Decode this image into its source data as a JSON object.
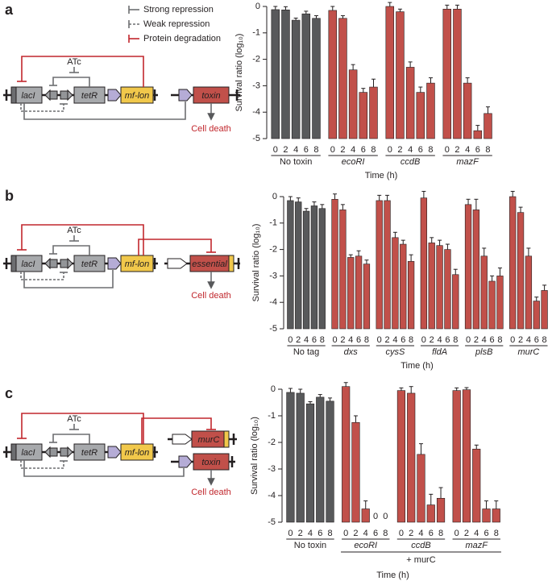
{
  "diagrams": [
    {
      "label": "a",
      "legend": [
        "Strong repression",
        "Weak repression",
        "Protein degradation"
      ],
      "inducer": "ATc",
      "genes": [
        "lacI",
        "tetR",
        "mf-lon",
        "toxin"
      ],
      "outcome": "Cell death"
    },
    {
      "label": "b",
      "inducer": "ATc",
      "genes": [
        "lacI",
        "tetR",
        "mf-lon",
        "essential"
      ],
      "outcome": "Cell death"
    },
    {
      "label": "c",
      "inducer": "ATc",
      "genes": [
        "lacI",
        "tetR",
        "mf-lon",
        "murC",
        "toxin"
      ],
      "outcome": "Cell death"
    }
  ],
  "chart_data": [
    {
      "type": "bar",
      "ylabel": "Survival ratio (log₁₀)",
      "xlabel": "Time (h)",
      "ylim": [
        -5,
        0
      ],
      "yticks": [
        0,
        -1,
        -2,
        -3,
        -4,
        -5
      ],
      "categories": [
        "0",
        "2",
        "4",
        "6",
        "8"
      ],
      "groups": [
        {
          "name": "No toxin",
          "color": "#58595b",
          "values": [
            -0.12,
            -0.13,
            -0.52,
            -0.28,
            -0.45
          ],
          "errors": [
            0.12,
            0.12,
            0.08,
            0.1,
            0.1
          ]
        },
        {
          "name": "ecoRI",
          "color": "#c1504a",
          "values": [
            -0.15,
            -0.45,
            -2.4,
            -3.25,
            -3.05
          ],
          "errors": [
            0.15,
            0.1,
            0.2,
            0.15,
            0.3
          ]
        },
        {
          "name": "ccdB",
          "color": "#c1504a",
          "values": [
            0,
            -0.2,
            -2.3,
            -3.25,
            -2.9
          ],
          "errors": [
            0.15,
            0.1,
            0.2,
            0.2,
            0.2
          ]
        },
        {
          "name": "mazF",
          "color": "#c1504a",
          "values": [
            -0.1,
            -0.1,
            -2.9,
            -4.7,
            -4.05
          ],
          "errors": [
            0.15,
            0.15,
            0.2,
            0.2,
            0.25
          ]
        }
      ]
    },
    {
      "type": "bar",
      "ylabel": "Survival ratio (log₁₀)",
      "xlabel": "Time (h)",
      "ylim": [
        -5,
        0
      ],
      "yticks": [
        0,
        -1,
        -2,
        -3,
        -4,
        -5
      ],
      "categories": [
        "0",
        "2",
        "4",
        "6",
        "8"
      ],
      "groups": [
        {
          "name": "No tag",
          "color": "#58595b",
          "values": [
            -0.15,
            -0.2,
            -0.55,
            -0.35,
            -0.45
          ],
          "errors": [
            0.15,
            0.15,
            0.1,
            0.15,
            0.15
          ]
        },
        {
          "name": "dxs",
          "color": "#c1504a",
          "values": [
            -0.1,
            -0.5,
            -2.3,
            -2.25,
            -2.55
          ],
          "errors": [
            0.2,
            0.2,
            0.1,
            0.2,
            0.15
          ]
        },
        {
          "name": "cysS",
          "color": "#c1504a",
          "values": [
            -0.15,
            -0.15,
            -1.55,
            -1.8,
            -2.45
          ],
          "errors": [
            0.2,
            0.2,
            0.2,
            0.15,
            0.25
          ]
        },
        {
          "name": "fldA",
          "color": "#c1504a",
          "values": [
            -0.05,
            -1.75,
            -1.85,
            -2.0,
            -2.95
          ],
          "errors": [
            0.25,
            0.2,
            0.2,
            0.2,
            0.2
          ]
        },
        {
          "name": "plsB",
          "color": "#c1504a",
          "values": [
            -0.3,
            -0.5,
            -2.25,
            -3.2,
            -3.0
          ],
          "errors": [
            0.2,
            0.4,
            0.3,
            0.2,
            0.3
          ]
        },
        {
          "name": "murC",
          "color": "#c1504a",
          "values": [
            0,
            -0.6,
            -2.25,
            -3.95,
            -3.55
          ],
          "errors": [
            0.2,
            0.2,
            0.3,
            0.15,
            0.2
          ]
        }
      ]
    },
    {
      "type": "bar",
      "ylabel": "Survival ratio (log₁₀)",
      "xlabel": "Time (h)",
      "note": "+ murC",
      "ylim": [
        -5,
        0
      ],
      "yticks": [
        0,
        -1,
        -2,
        -3,
        -4,
        -5
      ],
      "categories": [
        "0",
        "2",
        "4",
        "6",
        "8"
      ],
      "groups": [
        {
          "name": "No toxin",
          "color": "#58595b",
          "values": [
            -0.12,
            -0.15,
            -0.55,
            -0.3,
            -0.45
          ],
          "errors": [
            0.15,
            0.15,
            0.08,
            0.1,
            0.12
          ]
        },
        {
          "name": "ecoRI",
          "color": "#c1504a",
          "values": [
            0.1,
            -1.25,
            -4.5,
            null,
            null
          ],
          "errors": [
            0.15,
            0.25,
            0.3,
            null,
            null
          ],
          "value_labels": [
            null,
            null,
            null,
            "0",
            "0"
          ]
        },
        {
          "name": "ccdB",
          "color": "#c1504a",
          "values": [
            -0.05,
            -0.15,
            -2.45,
            -4.35,
            -4.1
          ],
          "errors": [
            0.1,
            0.25,
            0.4,
            0.4,
            0.4
          ]
        },
        {
          "name": "mazF",
          "color": "#c1504a",
          "values": [
            -0.05,
            -0.02,
            -2.25,
            -4.5,
            -4.5
          ],
          "errors": [
            0.1,
            0.08,
            0.15,
            0.3,
            0.3
          ]
        }
      ]
    }
  ]
}
